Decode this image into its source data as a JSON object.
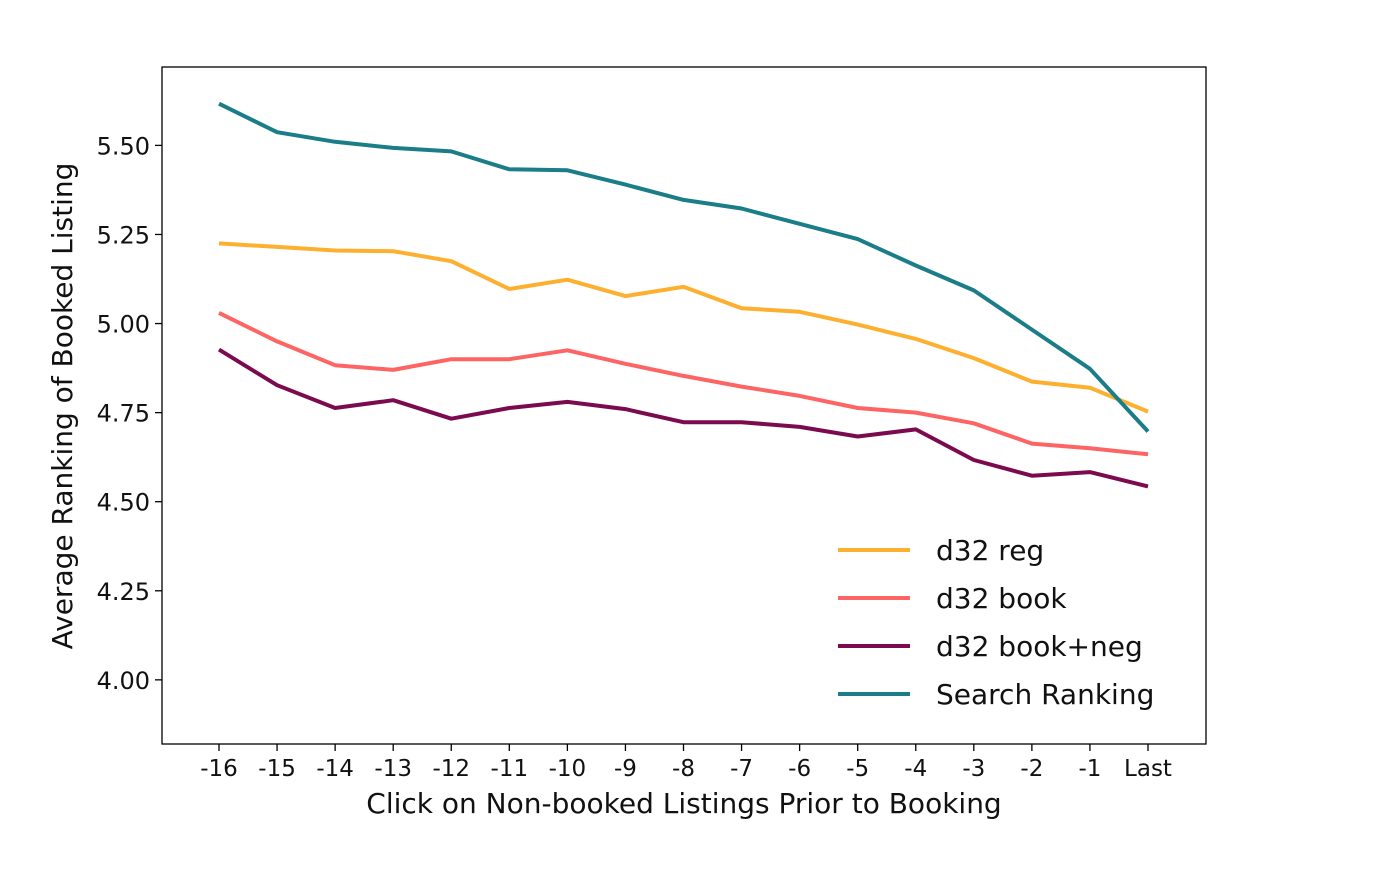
{
  "chart_data": {
    "type": "line",
    "title": "",
    "xlabel": "Click on Non-booked Listings Prior to Booking",
    "ylabel": "Average Ranking of Booked Listing",
    "categories": [
      "-16",
      "-15",
      "-14",
      "-13",
      "-12",
      "-11",
      "-10",
      "-9",
      "-8",
      "-7",
      "-6",
      "-5",
      "-4",
      "-3",
      "-2",
      "-1",
      "Last"
    ],
    "ylim": [
      3.82,
      5.72
    ],
    "yticks": [
      4.0,
      4.25,
      4.5,
      4.75,
      5.0,
      5.25,
      5.5
    ],
    "ytick_labels": [
      "4.00",
      "4.25",
      "4.50",
      "4.75",
      "5.00",
      "5.25",
      "5.50"
    ],
    "grid": false,
    "legend_position": "lower-right",
    "series": [
      {
        "name": "d32 reg",
        "color": "#FDB02F",
        "values": [
          5.225,
          5.215,
          5.205,
          5.203,
          5.175,
          5.097,
          5.123,
          5.077,
          5.103,
          5.043,
          5.033,
          4.997,
          4.957,
          4.903,
          4.837,
          4.82,
          4.753
        ]
      },
      {
        "name": "d32 book",
        "color": "#FD6464",
        "values": [
          5.03,
          4.95,
          4.883,
          4.87,
          4.9,
          4.9,
          4.925,
          4.887,
          4.853,
          4.823,
          4.797,
          4.763,
          4.75,
          4.72,
          4.663,
          4.65,
          4.633
        ]
      },
      {
        "name": "d32 book+neg",
        "color": "#7B0A4F",
        "values": [
          4.927,
          4.827,
          4.763,
          4.785,
          4.733,
          4.763,
          4.78,
          4.76,
          4.723,
          4.723,
          4.71,
          4.683,
          4.703,
          4.617,
          4.573,
          4.583,
          4.543
        ]
      },
      {
        "name": "Search Ranking",
        "color": "#1A7D87",
        "values": [
          5.617,
          5.537,
          5.51,
          5.493,
          5.483,
          5.433,
          5.43,
          5.39,
          5.347,
          5.323,
          5.28,
          5.237,
          5.163,
          5.093,
          4.983,
          4.873,
          4.697
        ]
      }
    ]
  }
}
